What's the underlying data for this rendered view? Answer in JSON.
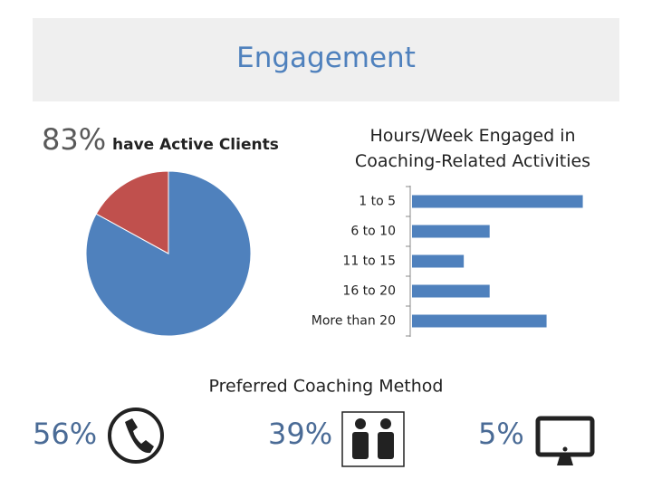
{
  "title": "Engagement",
  "chart_data": [
    {
      "type": "pie",
      "values": [
        83,
        17
      ],
      "value_labels": [
        "83%",
        null
      ],
      "caption": "have Active Clients",
      "colors": [
        "#4f81bd",
        "#c0504d"
      ]
    },
    {
      "type": "hbar",
      "title": "Hours/Week Engaged in Coaching-Related Activities",
      "categories": [
        "1 to 5",
        "6 to 10",
        "11 to 15",
        "16 to 20",
        "More than 20"
      ],
      "values": [
        33,
        15,
        10,
        15,
        26
      ],
      "xlim": [
        0,
        35
      ],
      "color": "#4f81bd"
    },
    {
      "type": "icons",
      "title": "Preferred Coaching Method",
      "values": [
        56,
        39,
        5
      ],
      "value_labels": [
        "56%",
        "39%",
        "5%"
      ],
      "color": "#4a6b96"
    }
  ]
}
